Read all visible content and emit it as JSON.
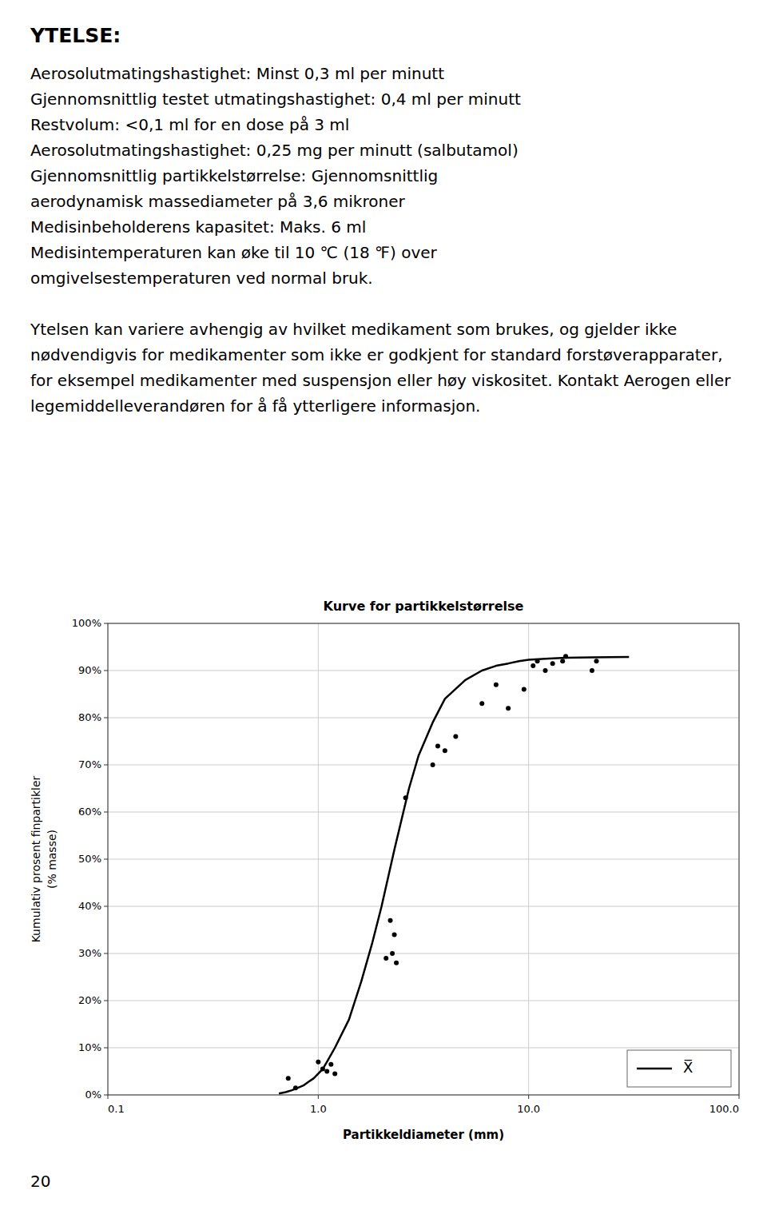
{
  "heading": "YTELSE:",
  "body_lines": [
    "Aerosolutmatingshastighet: Minst 0,3 ml per minutt",
    "Gjennomsnittlig testet utmatingshastighet: 0,4 ml per minutt",
    "Restvolum: <0,1 ml for en dose på 3 ml",
    "Aerosolutmatingshastighet: 0,25 mg per minutt (salbutamol)",
    "Gjennomsnittlig partikkelstørrelse: Gjennomsnittlig",
    "aerodynamisk massediameter på 3,6 mikroner",
    "Medisinbeholderens kapasitet: Maks. 6 ml",
    "Medisintemperaturen kan øke til 10 ℃ (18 ℉) over",
    "omgivelsestemperaturen ved normal bruk."
  ],
  "paragraph": "Ytelsen kan variere avhengig av hvilket medikament som brukes, og gjelder ikke nødvendigvis for medikamenter som ikke er godkjent for standard forstøverapparater, for eksempel medikamenter med suspensjon eller høy viskositet. Kontakt Aerogen eller legemiddelleverandøren for å få ytterligere informasjon.",
  "page_number": "20",
  "chart_data": {
    "type": "line",
    "title": "Kurve for partikkelstørrelse",
    "x_label": "Partikkeldiameter (mm)",
    "y_label": [
      "Kumulativ prosent finpartikler",
      "(% masse)"
    ],
    "log": "x",
    "xlim": [
      0.1,
      100
    ],
    "xticks": [
      0.1,
      {
        "value": 1,
        "label": "1.0"
      },
      {
        "value": 10,
        "label": "10.0"
      },
      {
        "value": 100,
        "label": "100.0"
      }
    ],
    "ylim": [
      0,
      100
    ],
    "yticks": [
      {
        "value": 0,
        "label": "0%"
      },
      {
        "value": 10,
        "label": "10%"
      },
      {
        "value": 20,
        "label": "20%"
      },
      {
        "value": 30,
        "label": "30%"
      },
      {
        "value": 40,
        "label": "40%"
      },
      {
        "value": 50,
        "label": "50%"
      },
      {
        "value": 60,
        "label": "60%"
      },
      {
        "value": 70,
        "label": "70%"
      },
      {
        "value": 80,
        "label": "80%"
      },
      {
        "value": 90,
        "label": "90%"
      },
      {
        "value": 100,
        "label": "100%"
      }
    ],
    "grid": true,
    "legend": "lower right",
    "series": [
      {
        "name": "X̅",
        "type": "line",
        "line_style": "solid",
        "color": "#000000",
        "x": [
          0.65,
          0.7,
          0.75,
          0.8,
          0.85,
          0.9,
          0.95,
          1.0,
          1.05,
          1.1,
          1.2,
          1.4,
          1.6,
          1.8,
          2.0,
          2.3,
          2.7,
          3.0,
          3.5,
          4.0,
          5.0,
          6.0,
          7.0,
          8.0,
          9.0,
          10.0,
          12.0,
          15.0,
          20.0,
          30.0
        ],
        "values": [
          0.3,
          0.6,
          1.0,
          1.5,
          2.0,
          2.8,
          3.5,
          4.5,
          5.5,
          7.0,
          10.0,
          16.0,
          24.0,
          32.0,
          40.0,
          52.0,
          65.0,
          72.0,
          79.0,
          84.0,
          88.0,
          90.0,
          91.0,
          91.5,
          92.0,
          92.3,
          92.5,
          92.7,
          92.8,
          92.9
        ]
      },
      {
        "type": "scatter",
        "marker": "circle",
        "color": "#000000",
        "x": [
          0.72,
          0.78,
          1.0,
          1.05,
          1.1,
          1.15,
          1.2,
          2.1,
          2.2,
          2.25,
          2.3,
          2.35,
          2.6,
          3.5,
          3.7,
          4.0,
          4.5,
          6.0,
          7.0,
          8.0,
          9.5,
          10.5,
          11.0,
          12.0,
          13.0,
          14.5,
          15.0,
          20.0,
          21.0
        ],
        "values": [
          3.5,
          1.5,
          7.0,
          5.5,
          5.0,
          6.5,
          4.5,
          29.0,
          37.0,
          30.0,
          34.0,
          28.0,
          63.0,
          70.0,
          74.0,
          73.0,
          76.0,
          83.0,
          87.0,
          82.0,
          86.0,
          91.0,
          92.0,
          90.0,
          91.5,
          92.0,
          93.0,
          90.0,
          92.0
        ]
      }
    ]
  }
}
